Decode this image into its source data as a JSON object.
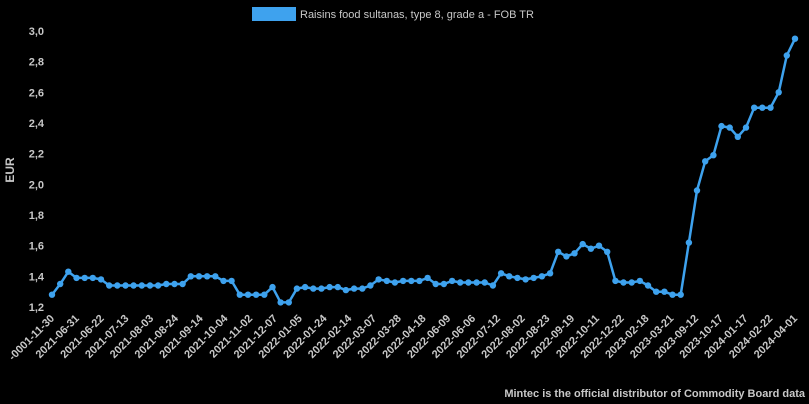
{
  "chart_data": {
    "type": "line",
    "series": [
      {
        "name": "Raisins food sultanas, type 8, grade a - FOB TR",
        "color": "#3ea2ee",
        "values": [
          1.28,
          1.35,
          1.43,
          1.39,
          1.39,
          1.39,
          1.38,
          1.34,
          1.34,
          1.34,
          1.34,
          1.34,
          1.34,
          1.34,
          1.35,
          1.35,
          1.35,
          1.4,
          1.4,
          1.4,
          1.4,
          1.37,
          1.37,
          1.28,
          1.28,
          1.28,
          1.28,
          1.33,
          1.23,
          1.23,
          1.32,
          1.33,
          1.32,
          1.32,
          1.33,
          1.33,
          1.31,
          1.32,
          1.32,
          1.34,
          1.38,
          1.37,
          1.36,
          1.37,
          1.37,
          1.37,
          1.39,
          1.35,
          1.35,
          1.37,
          1.36,
          1.36,
          1.36,
          1.36,
          1.34,
          1.42,
          1.4,
          1.39,
          1.38,
          1.39,
          1.4,
          1.42,
          1.56,
          1.53,
          1.55,
          1.61,
          1.58,
          1.6,
          1.56,
          1.37,
          1.36,
          1.36,
          1.37,
          1.34,
          1.3,
          1.3,
          1.28,
          1.28,
          1.62,
          1.96,
          2.15,
          2.19,
          2.38,
          2.37,
          2.31,
          2.37,
          2.5,
          2.5,
          2.5,
          2.6,
          2.84,
          2.95
        ]
      }
    ],
    "x_tick_labels": [
      "-0001-11-30",
      "2021-06-31",
      "2021-06-22",
      "2021-07-13",
      "2021-08-03",
      "2021-08-24",
      "2021-09-14",
      "2021-10-04",
      "2021-11-02",
      "2021-12-07",
      "2022-01-05",
      "2022-01-24",
      "2022-02-14",
      "2022-03-07",
      "2022-03-28",
      "2022-04-18",
      "2022-06-09",
      "2022-06-06",
      "2022-07-12",
      "2022-08-02",
      "2022-08-23",
      "2022-09-19",
      "2022-10-11",
      "2022-12-22",
      "2023-02-18",
      "2023-03-21",
      "2023-09-12",
      "2023-10-17",
      "2024-01-17",
      "2024-02-22",
      "2024-04-01"
    ],
    "y_ticks": [
      "1,2",
      "1,4",
      "1,6",
      "1,8",
      "2,0",
      "2,2",
      "2,4",
      "2,6",
      "2,8",
      "3,0"
    ],
    "ylim": [
      1.2,
      3.0
    ],
    "ylabel": "EUR",
    "xlabel": "",
    "grid": false,
    "legend": "top-center"
  },
  "footer": "Mintec is the official distributor of Commodity Board data"
}
